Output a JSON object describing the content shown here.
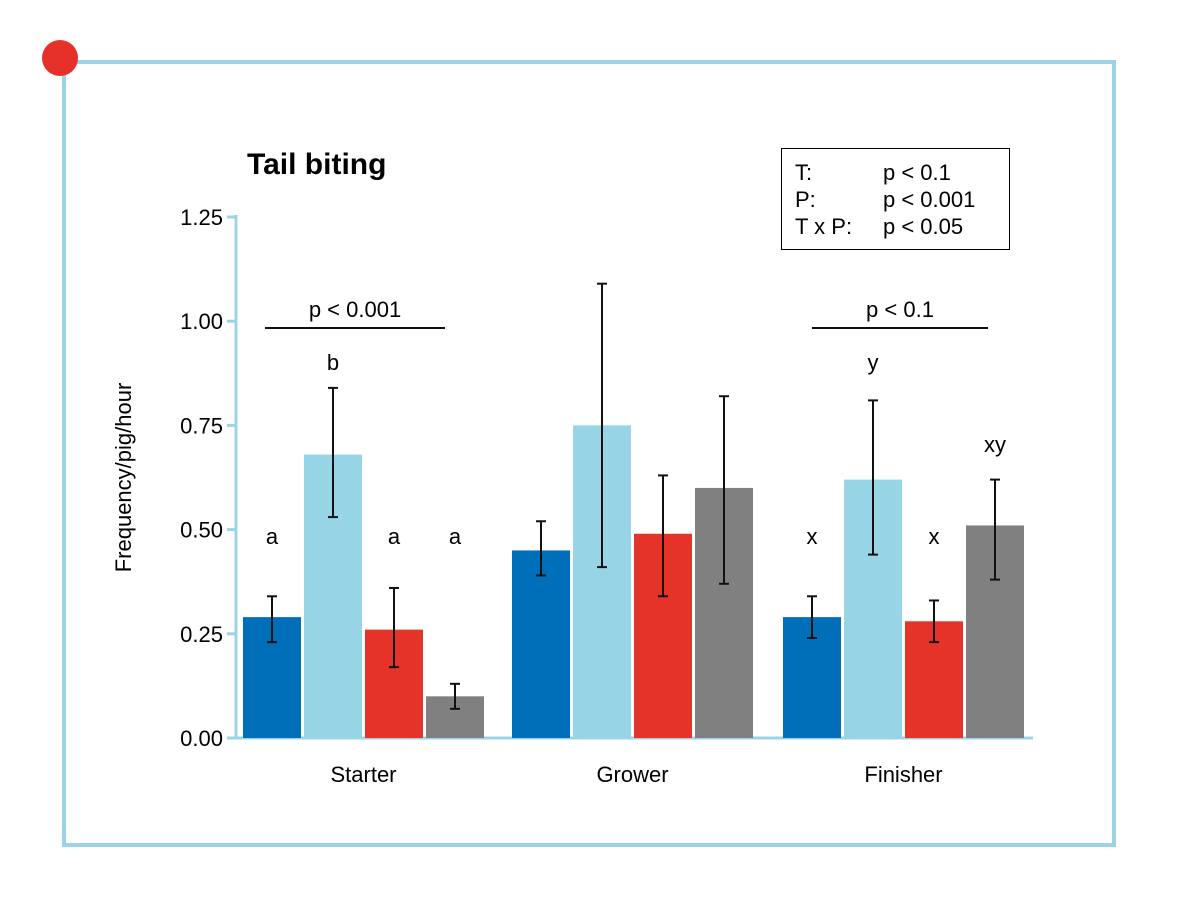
{
  "chart_data": {
    "type": "bar",
    "title": "Tail biting",
    "ylabel": "Frequency/pig/hour",
    "xlabel": "",
    "ylim": [
      0,
      1.25
    ],
    "yticks": [
      "0.00",
      "0.25",
      "0.50",
      "0.75",
      "1.00",
      "1.25"
    ],
    "categories": [
      "Starter",
      "Grower",
      "Finisher"
    ],
    "series": [
      {
        "color": "#006fba",
        "values": [
          0.29,
          0.45,
          0.29
        ],
        "err_low": [
          0.23,
          0.39,
          0.24
        ],
        "err_high": [
          0.34,
          0.52,
          0.34
        ]
      },
      {
        "color": "#97d4e6",
        "values": [
          0.68,
          0.75,
          0.62
        ],
        "err_low": [
          0.53,
          0.41,
          0.44
        ],
        "err_high": [
          0.84,
          1.09,
          0.81
        ]
      },
      {
        "color": "#e5332a",
        "values": [
          0.26,
          0.49,
          0.28
        ],
        "err_low": [
          0.17,
          0.34,
          0.23
        ],
        "err_high": [
          0.36,
          0.63,
          0.33
        ]
      },
      {
        "color": "#808080",
        "values": [
          0.1,
          0.6,
          0.51
        ],
        "err_low": [
          0.07,
          0.37,
          0.38
        ],
        "err_high": [
          0.13,
          0.82,
          0.62
        ]
      }
    ],
    "letters": [
      [
        "a",
        "b",
        "a",
        "a"
      ],
      [
        "",
        "",
        "",
        ""
      ],
      [
        "x",
        "y",
        "x",
        "xy"
      ]
    ],
    "comparisons": [
      "p < 0.001",
      "",
      "p < 0.1"
    ],
    "stats": [
      {
        "term": "T:",
        "p": "p < 0.1"
      },
      {
        "term": "P:",
        "p": "p < 0.001"
      },
      {
        "term": "T x P:",
        "p": "p < 0.05"
      }
    ]
  },
  "colors": {
    "frame": "#9dd3e6",
    "dot": "#e5312a",
    "axis": "#9dd3e6"
  }
}
